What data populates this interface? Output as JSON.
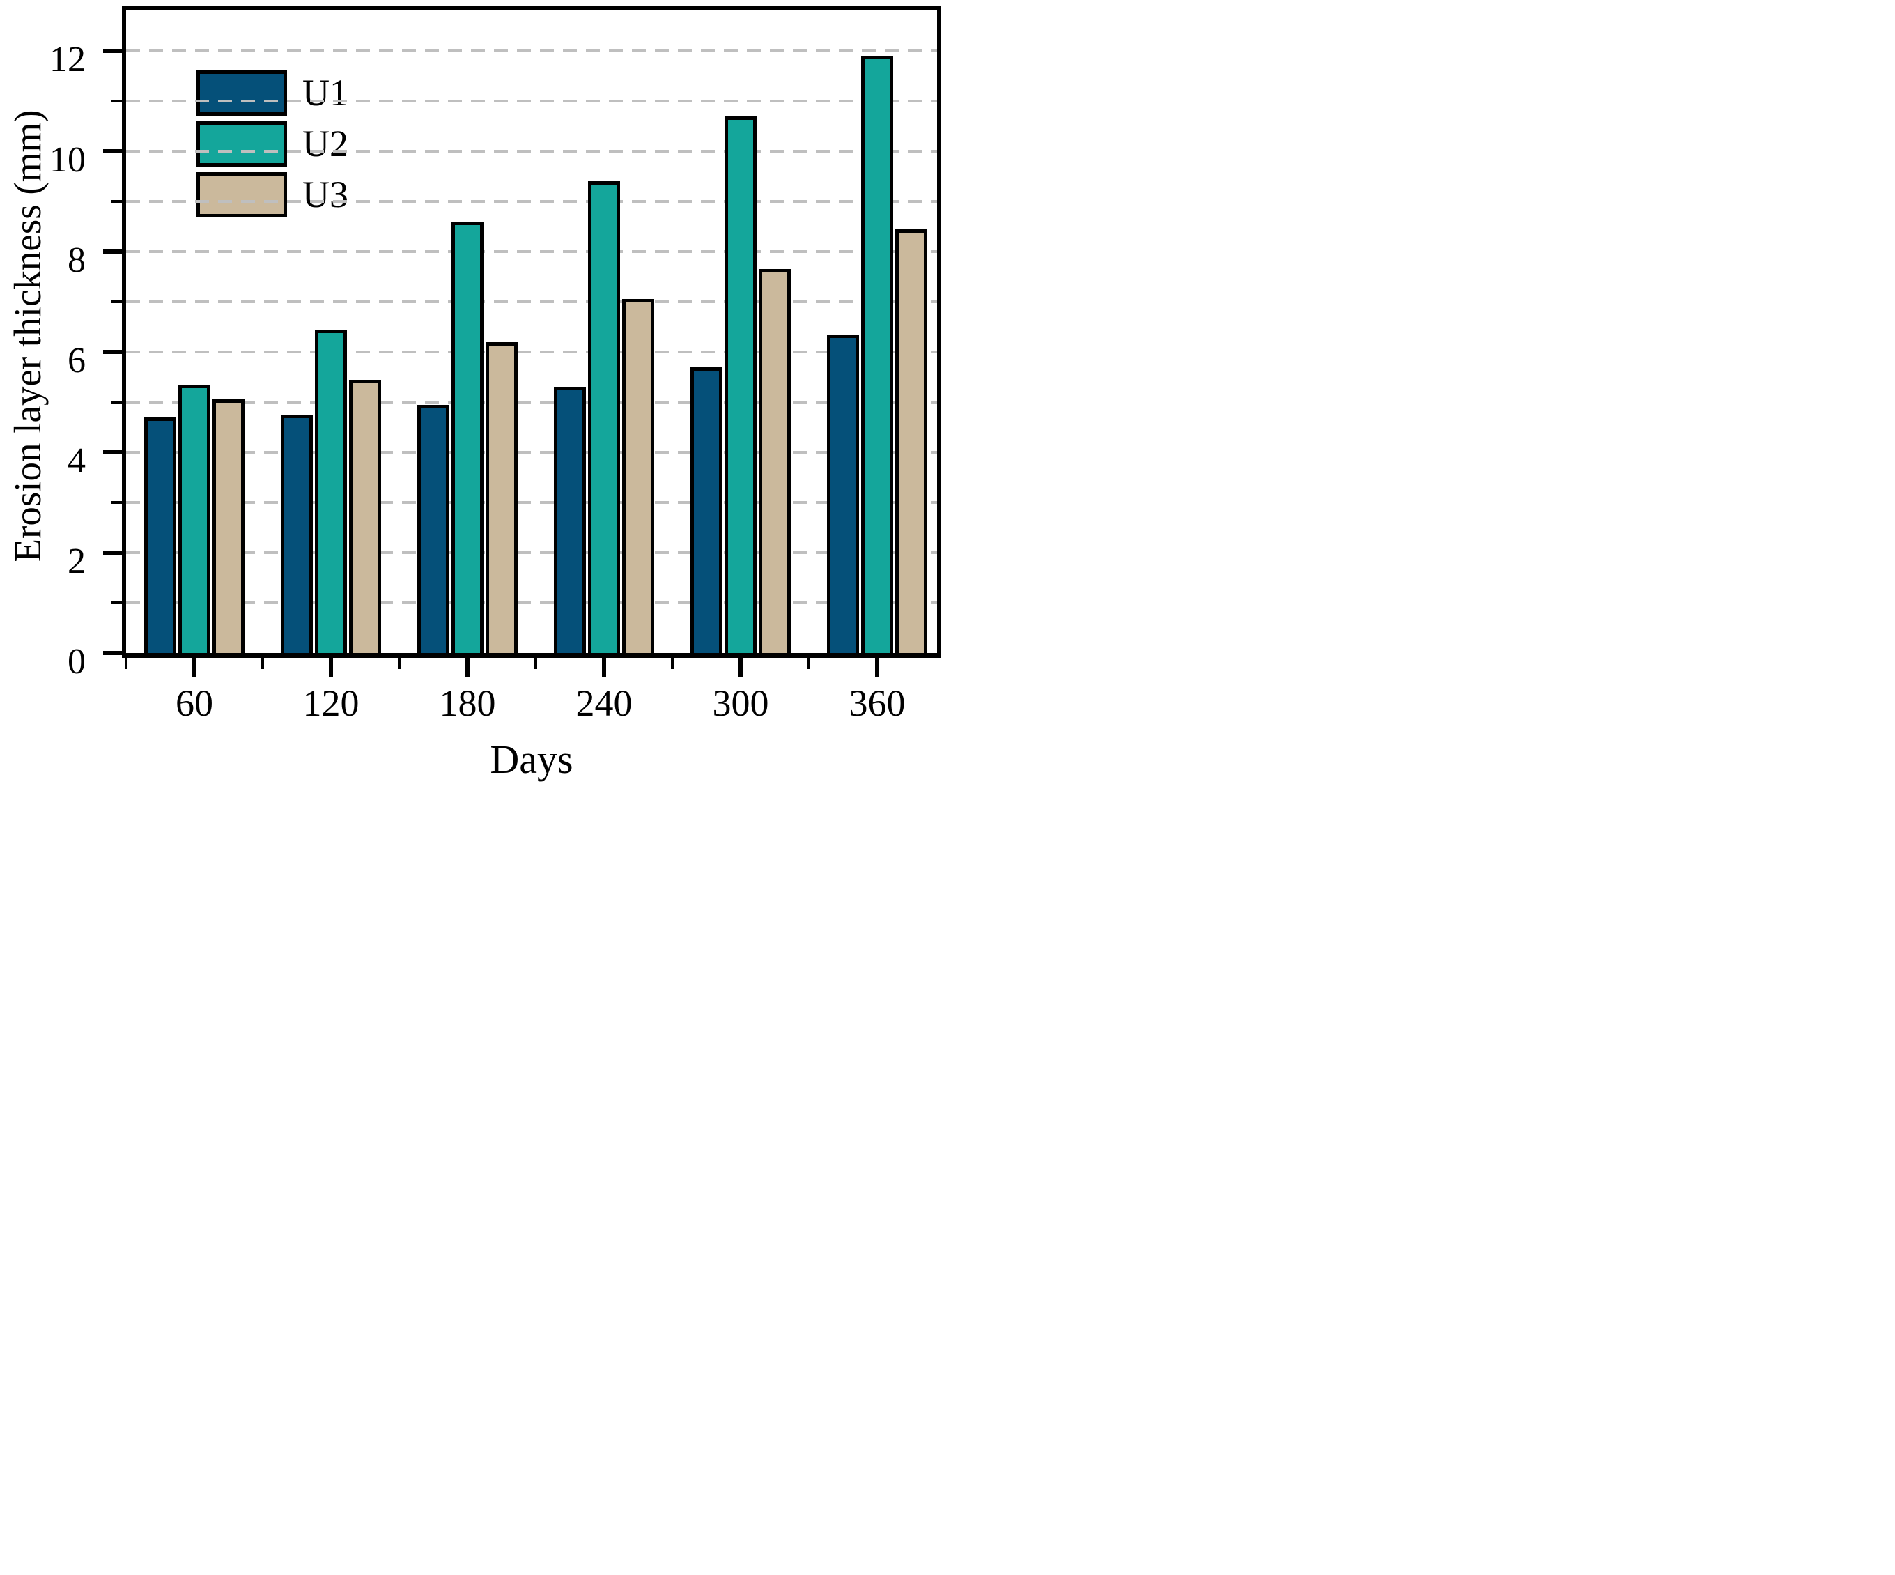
{
  "figure": {
    "background": "#ffffff"
  },
  "chart_data": {
    "type": "bar",
    "title": "",
    "xlabel": "Days",
    "ylabel": "Erosion layer thickness (mm)",
    "categories": [
      "60",
      "120",
      "180",
      "240",
      "300",
      "360"
    ],
    "series": [
      {
        "name": "U1",
        "color": "#055079",
        "values": [
          4.7,
          4.75,
          4.95,
          5.3,
          5.7,
          6.35
        ]
      },
      {
        "name": "U2",
        "color": "#14a69b",
        "values": [
          5.35,
          6.45,
          8.6,
          9.4,
          10.7,
          11.9
        ]
      },
      {
        "name": "U3",
        "color": "#cbb99c",
        "values": [
          5.05,
          5.45,
          6.2,
          7.05,
          7.65,
          8.45
        ]
      }
    ],
    "ylim": [
      0,
      13
    ],
    "ytick_labels": [
      "0",
      "2",
      "4",
      "6",
      "8",
      "10",
      "12"
    ],
    "ytick_values": [
      0,
      2,
      4,
      6,
      8,
      10,
      12
    ],
    "yminor_values": [
      1,
      3,
      5,
      7,
      9,
      11
    ],
    "grid": {
      "show": true,
      "every": 1,
      "style": "dashed",
      "color": "#bfbfbf"
    },
    "legend_position": "top-left",
    "bar_outline_color": "#000000"
  }
}
